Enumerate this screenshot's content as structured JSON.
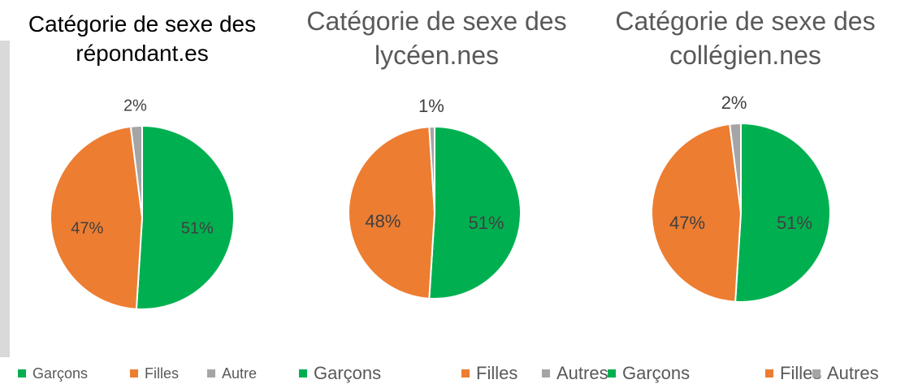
{
  "chart_data": [
    {
      "type": "pie",
      "title": "Catégorie de sexe des répondant.es",
      "categories": [
        "Garçons",
        "Filles",
        "Autre"
      ],
      "values": [
        51,
        47,
        2
      ],
      "value_labels": [
        "51%",
        "47%",
        "2%"
      ],
      "colors": [
        "#00b050",
        "#ed7d31",
        "#a5a5a5"
      ],
      "legend": "bottom"
    },
    {
      "type": "pie",
      "title": "Catégorie de sexe des lycéen.nes",
      "categories": [
        "Garçons",
        "Filles",
        "Autres"
      ],
      "values": [
        51,
        48,
        1
      ],
      "value_labels": [
        "51%",
        "48%",
        "1%"
      ],
      "colors": [
        "#00b050",
        "#ed7d31",
        "#a5a5a5"
      ],
      "legend": "bottom"
    },
    {
      "type": "pie",
      "title": "Catégorie de sexe des collégien.nes",
      "categories": [
        "Garçons",
        "Filles",
        "Autres"
      ],
      "values": [
        51,
        47,
        2
      ],
      "value_labels": [
        "51%",
        "47%",
        "2%"
      ],
      "colors": [
        "#00b050",
        "#ed7d31",
        "#a5a5a5"
      ],
      "legend": "bottom"
    }
  ]
}
